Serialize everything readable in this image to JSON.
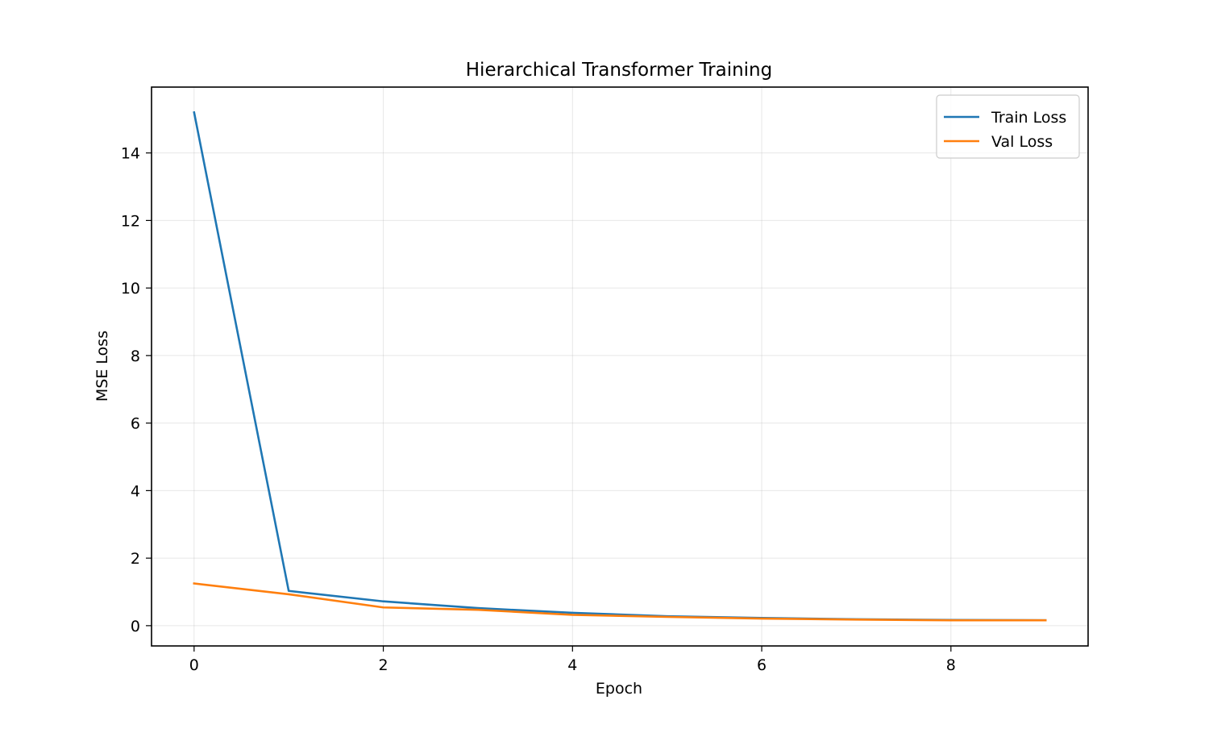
{
  "chart_data": {
    "type": "line",
    "title": "Hierarchical Transformer Training",
    "xlabel": "Epoch",
    "ylabel": "MSE Loss",
    "x": [
      0,
      1,
      2,
      3,
      4,
      5,
      6,
      7,
      8,
      9
    ],
    "xlim": [
      -0.45,
      9.45
    ],
    "ylim": [
      -0.6,
      15.95
    ],
    "xticks": [
      0,
      2,
      4,
      6,
      8
    ],
    "yticks": [
      0,
      2,
      4,
      6,
      8,
      10,
      12,
      14
    ],
    "grid": true,
    "legend_position": "top-right",
    "series": [
      {
        "name": "Train Loss",
        "color": "#1f77b4",
        "values": [
          15.2,
          1.03,
          0.72,
          0.52,
          0.38,
          0.28,
          0.23,
          0.19,
          0.17,
          0.16
        ]
      },
      {
        "name": "Val Loss",
        "color": "#ff7f0e",
        "values": [
          1.25,
          0.93,
          0.54,
          0.47,
          0.32,
          0.26,
          0.21,
          0.18,
          0.16,
          0.16
        ]
      }
    ]
  }
}
